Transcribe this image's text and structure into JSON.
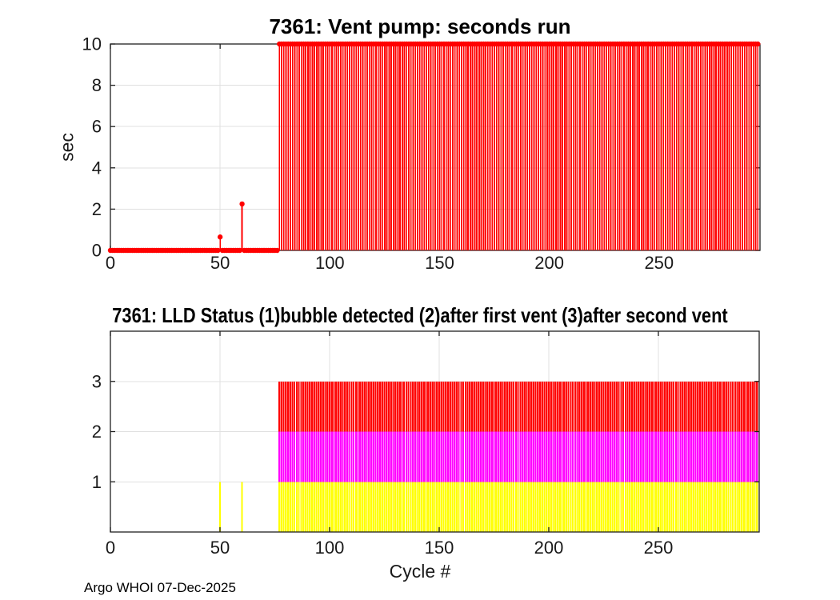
{
  "footer": "Argo WHOI 07-Dec-2025",
  "colors": {
    "background": "#ffffff",
    "axis": "#1f1f1f",
    "grid": "#e0e0e0",
    "tick_label": "#1a1a1a",
    "stem_red": "#ff0000",
    "status_yellow": "#ffff00",
    "status_magenta": "#ff00ff",
    "status_red": "#ff0000"
  },
  "chart_data": [
    {
      "type": "stem",
      "title": "7361: Vent pump: seconds run",
      "ylabel": "sec",
      "xlabel": "",
      "color": "#ff0000",
      "xlim": [
        0,
        296
      ],
      "ylim": [
        0,
        10
      ],
      "xticks": [
        0,
        50,
        100,
        150,
        200,
        250
      ],
      "yticks": [
        0,
        2,
        4,
        6,
        8,
        10
      ],
      "grid": true,
      "legend": "none",
      "values_rle": [
        {
          "from": 0,
          "to": 49,
          "value": 0
        },
        {
          "from": 50,
          "to": 50,
          "value": 0.65
        },
        {
          "from": 51,
          "to": 59,
          "value": 0
        },
        {
          "from": 60,
          "to": 60,
          "value": 2.25
        },
        {
          "from": 61,
          "to": 76,
          "value": 0
        },
        {
          "from": 77,
          "to": 295,
          "value": 10
        }
      ]
    },
    {
      "type": "stacked-bar",
      "title": "7361: LLD Status   (1)bubble detected   (2)after first vent  (3)after second vent",
      "ylabel": "",
      "xlabel": "Cycle #",
      "xlim": [
        0,
        296
      ],
      "ylim": [
        0,
        4
      ],
      "xticks": [
        0,
        50,
        100,
        150,
        200,
        250
      ],
      "yticks": [
        1,
        2,
        3
      ],
      "grid": true,
      "legend": "none",
      "series": [
        {
          "name": "bubble detected",
          "color": "#ffff00",
          "values_rle": [
            {
              "from": 50,
              "to": 50,
              "value": 1
            },
            {
              "from": 60,
              "to": 60,
              "value": 1
            },
            {
              "from": 77,
              "to": 295,
              "value": 1
            }
          ]
        },
        {
          "name": "after first vent",
          "color": "#ff00ff",
          "values_rle": [
            {
              "from": 77,
              "to": 295,
              "value": 1
            }
          ]
        },
        {
          "name": "after second vent",
          "color": "#ff0000",
          "values_rle": [
            {
              "from": 77,
              "to": 295,
              "value": 1
            }
          ]
        }
      ]
    }
  ]
}
